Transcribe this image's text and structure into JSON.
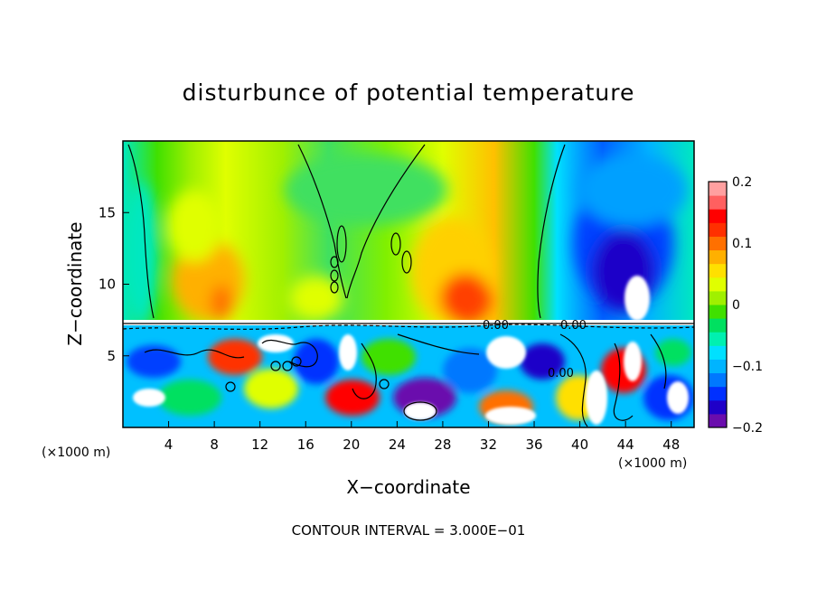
{
  "chart_data": {
    "type": "heatmap",
    "title": "disturbunce of potential temperature",
    "xlabel": "X−coordinate",
    "ylabel": "Z−coordinate",
    "x_unit_left": "(×1000 m)",
    "x_unit_right": "(×1000 m)",
    "xlim": [
      0,
      50
    ],
    "ylim": [
      0,
      20
    ],
    "x_ticks": [
      4,
      8,
      12,
      16,
      20,
      24,
      28,
      32,
      36,
      40,
      44,
      48
    ],
    "y_ticks": [
      5,
      10,
      15
    ],
    "colorbar": {
      "min": -0.2,
      "max": 0.2,
      "tick_labels": [
        "0.2",
        "0.1",
        "0",
        "−0.1",
        "−0.2"
      ],
      "tick_values": [
        0.2,
        0.1,
        0,
        -0.1,
        -0.2
      ],
      "colors": [
        "#6a0dad",
        "#1f00c8",
        "#0030ff",
        "#0078ff",
        "#00b4ff",
        "#00e0ff",
        "#00f0b0",
        "#00e060",
        "#40e000",
        "#a0f000",
        "#e0ff00",
        "#ffe000",
        "#ffb000",
        "#ff7000",
        "#ff3000",
        "#ff0000",
        "#ff6060",
        "#ffa0a0"
      ]
    },
    "contour_labels": [
      "0.00",
      "0.00",
      "0.00"
    ],
    "footer": "CONTOUR INTERVAL = 3.000E−01",
    "grid": false
  }
}
